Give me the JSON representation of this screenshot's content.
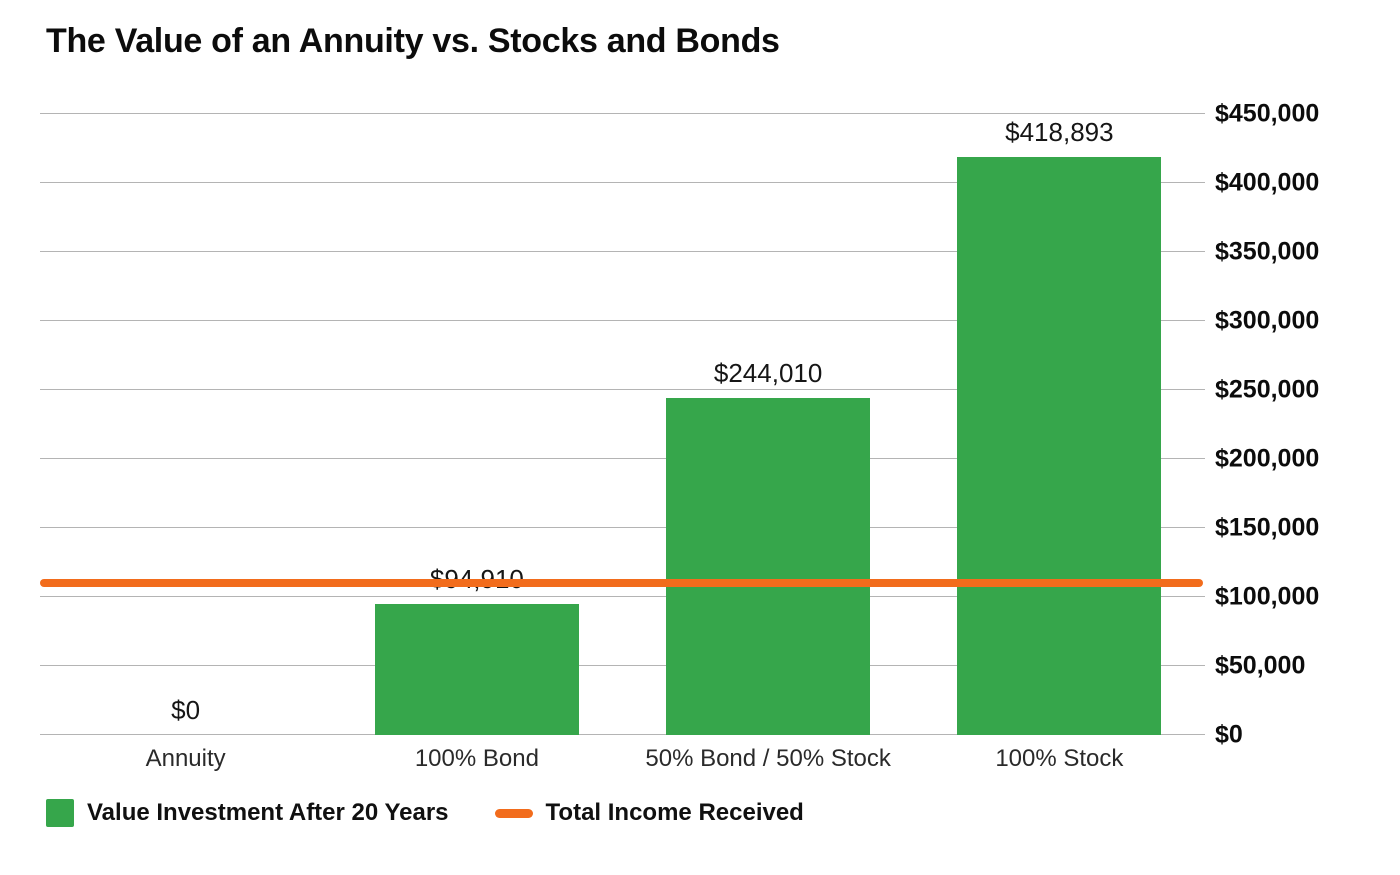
{
  "chart_data": {
    "type": "bar",
    "title": "The Value of an Annuity vs. Stocks and Bonds",
    "categories": [
      "Annuity",
      "100% Bond",
      "50% Bond / 50% Stock",
      "100% Stock"
    ],
    "series": [
      {
        "name": "Value Investment After 20 Years",
        "kind": "bar",
        "color": "#36a64b",
        "values": [
          0,
          94910,
          244010,
          418893
        ],
        "value_labels": [
          "$0",
          "$94,910",
          "$244,010",
          "$418,893"
        ]
      },
      {
        "name": "Total Income Received",
        "kind": "line",
        "color": "#f26c1c",
        "value_estimated": 110000
      }
    ],
    "ylim": [
      0,
      450000
    ],
    "yticks": [
      {
        "value": 0,
        "label": "$0"
      },
      {
        "value": 50000,
        "label": "$50,000"
      },
      {
        "value": 100000,
        "label": "$100,000"
      },
      {
        "value": 150000,
        "label": "$150,000"
      },
      {
        "value": 200000,
        "label": "$200,000"
      },
      {
        "value": 250000,
        "label": "$250,000"
      },
      {
        "value": 300000,
        "label": "$300,000"
      },
      {
        "value": 350000,
        "label": "$350,000"
      },
      {
        "value": 400000,
        "label": "$400,000"
      },
      {
        "value": 450000,
        "label": "$450,000"
      }
    ],
    "grid": "horizontal",
    "y_axis_side": "right",
    "legend_position": "bottom-left",
    "gridline_color": "#b4b4b4"
  }
}
